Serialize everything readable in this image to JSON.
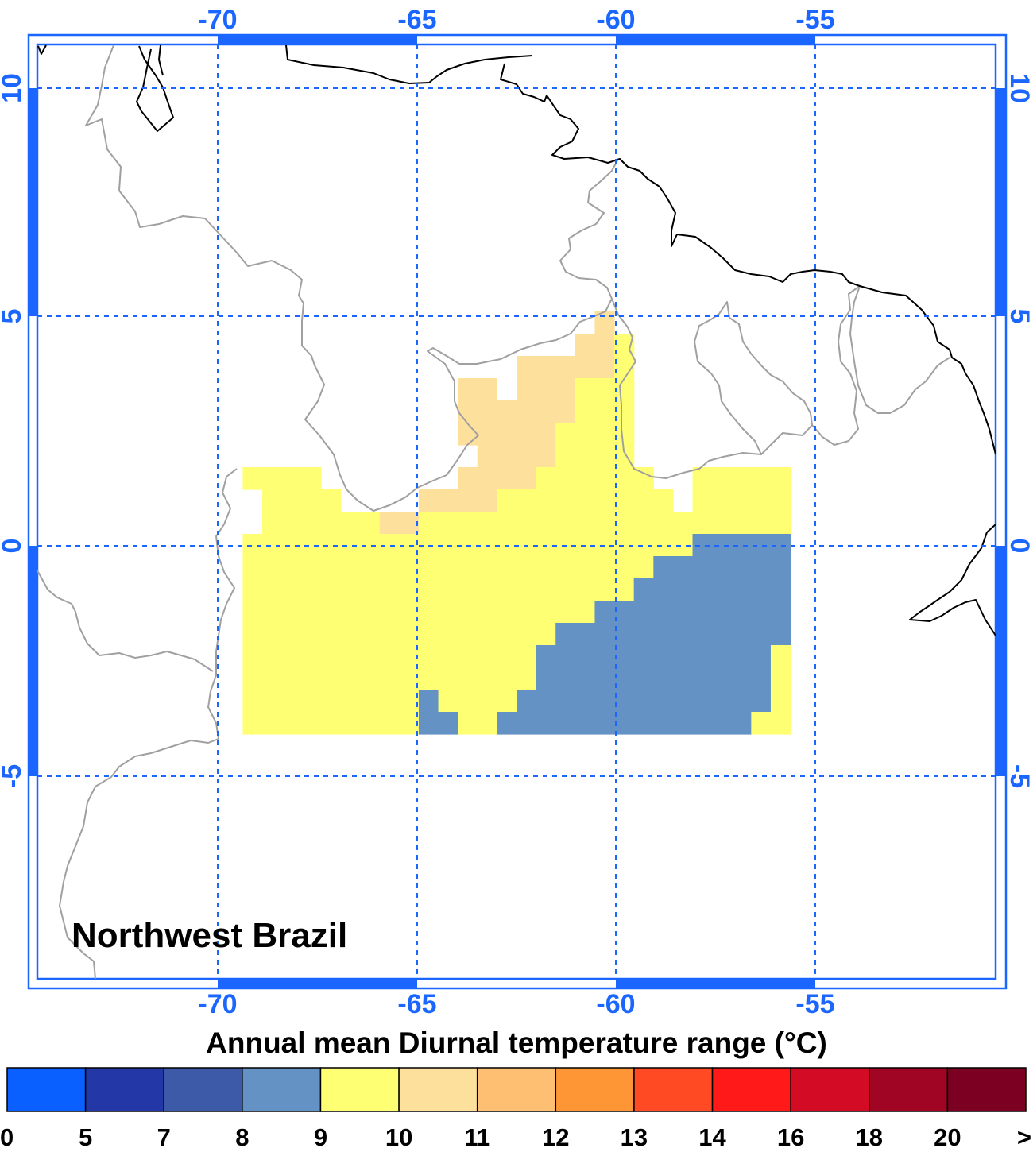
{
  "region_label": "Northwest Brazil",
  "title": "Annual mean Diurnal temperature range (°C)",
  "units": "°C",
  "accent_color": "#1a66ff",
  "axes": {
    "lon_ticks": [
      "-70",
      "-65",
      "-60",
      "-55"
    ],
    "lat_ticks": [
      "10",
      "5",
      "0",
      "-5"
    ]
  },
  "colorbar": {
    "labels": [
      "0",
      "5",
      "7",
      "8",
      "9",
      "10",
      "11",
      "12",
      "13",
      "14",
      "16",
      "18",
      "20",
      ">"
    ],
    "colors": [
      "#0a5fff",
      "#2437a6",
      "#3c5aa8",
      "#6592c4",
      "#ffff73",
      "#fde09c",
      "#ffbf73",
      "#ff9635",
      "#ff4a23",
      "#ff1919",
      "#d40b24",
      "#a00523",
      "#7b0021"
    ]
  },
  "chart_data": {
    "type": "heatmap",
    "title": "Annual mean Diurnal temperature range (°C)",
    "region": "Northwest Brazil",
    "xlim": [
      -74.75,
      -50.25
    ],
    "ylim": [
      -9.5,
      11.5
    ],
    "cell_size_deg": 0.5,
    "cells_by_row": [
      {
        "lat_range": [
          5,
          5.5
        ],
        "segments": [
          {
            "lon": [
              -60.5,
              -60
            ],
            "class": "10-11"
          }
        ]
      },
      {
        "lat_range": [
          4.5,
          5
        ],
        "segments": [
          {
            "lon": [
              -61,
              -60
            ],
            "class": "10-11"
          },
          {
            "lon": [
              -60,
              -59.5
            ],
            "class": "9-10"
          }
        ]
      },
      {
        "lat_range": [
          4,
          4.5
        ],
        "segments": [
          {
            "lon": [
              -62.5,
              -60
            ],
            "class": "10-11"
          },
          {
            "lon": [
              -60,
              -59.5
            ],
            "class": "9-10"
          }
        ]
      },
      {
        "lat_range": [
          3.5,
          4
        ],
        "segments": [
          {
            "lon": [
              -64,
              -63
            ],
            "class": "10-11"
          },
          {
            "lon": [
              -62.5,
              -61
            ],
            "class": "10-11"
          },
          {
            "lon": [
              -61,
              -59.5
            ],
            "class": "9-10"
          }
        ]
      },
      {
        "lat_range": [
          3,
          3.5
        ],
        "segments": [
          {
            "lon": [
              -64,
              -61
            ],
            "class": "10-11"
          },
          {
            "lon": [
              -61,
              -59.5
            ],
            "class": "9-10"
          }
        ]
      },
      {
        "lat_range": [
          2.5,
          3
        ],
        "segments": [
          {
            "lon": [
              -64,
              -61.5
            ],
            "class": "10-11"
          },
          {
            "lon": [
              -61.5,
              -59.5
            ],
            "class": "9-10"
          }
        ]
      },
      {
        "lat_range": [
          2,
          2.5
        ],
        "segments": [
          {
            "lon": [
              -63.5,
              -61.5
            ],
            "class": "10-11"
          },
          {
            "lon": [
              -61.5,
              -59.5
            ],
            "class": "9-10"
          }
        ]
      },
      {
        "lat_range": [
          1.5,
          2
        ],
        "segments": [
          {
            "lon": [
              -69.5,
              -67.5
            ],
            "class": "9-10"
          },
          {
            "lon": [
              -64,
              -62
            ],
            "class": "10-11"
          },
          {
            "lon": [
              -62,
              -59
            ],
            "class": "9-10"
          },
          {
            "lon": [
              -58,
              -55.5
            ],
            "class": "9-10"
          }
        ]
      },
      {
        "lat_range": [
          1,
          1.5
        ],
        "segments": [
          {
            "lon": [
              -69,
              -67
            ],
            "class": "9-10"
          },
          {
            "lon": [
              -65,
              -63
            ],
            "class": "10-11"
          },
          {
            "lon": [
              -63,
              -58.5
            ],
            "class": "9-10"
          },
          {
            "lon": [
              -58,
              -55.5
            ],
            "class": "9-10"
          }
        ]
      },
      {
        "lat_range": [
          0.5,
          1
        ],
        "segments": [
          {
            "lon": [
              -69,
              -66
            ],
            "class": "9-10"
          },
          {
            "lon": [
              -66,
              -65
            ],
            "class": "10-11"
          },
          {
            "lon": [
              -65,
              -55.5
            ],
            "class": "9-10"
          }
        ]
      },
      {
        "lat_range": [
          0,
          0.5
        ],
        "segments": [
          {
            "lon": [
              -69.5,
              -58
            ],
            "class": "9-10"
          },
          {
            "lon": [
              -58,
              -55.5
            ],
            "class": "8-9"
          }
        ]
      },
      {
        "lat_range": [
          -0.5,
          0
        ],
        "segments": [
          {
            "lon": [
              -69.5,
              -59
            ],
            "class": "9-10"
          },
          {
            "lon": [
              -59,
              -55.5
            ],
            "class": "8-9"
          }
        ]
      },
      {
        "lat_range": [
          -1,
          -0.5
        ],
        "segments": [
          {
            "lon": [
              -69.5,
              -59.5
            ],
            "class": "9-10"
          },
          {
            "lon": [
              -59.5,
              -55.5
            ],
            "class": "8-9"
          }
        ]
      },
      {
        "lat_range": [
          -1.5,
          -1
        ],
        "segments": [
          {
            "lon": [
              -69.5,
              -60.5
            ],
            "class": "9-10"
          },
          {
            "lon": [
              -60.5,
              -55.5
            ],
            "class": "8-9"
          }
        ]
      },
      {
        "lat_range": [
          -2,
          -1.5
        ],
        "segments": [
          {
            "lon": [
              -69.5,
              -61.5
            ],
            "class": "9-10"
          },
          {
            "lon": [
              -61.5,
              -55.5
            ],
            "class": "8-9"
          }
        ]
      },
      {
        "lat_range": [
          -2.5,
          -2
        ],
        "segments": [
          {
            "lon": [
              -69.5,
              -62
            ],
            "class": "9-10"
          },
          {
            "lon": [
              -62,
              -56
            ],
            "class": "8-9"
          },
          {
            "lon": [
              -56,
              -55.5
            ],
            "class": "9-10"
          }
        ]
      },
      {
        "lat_range": [
          -3,
          -2.5
        ],
        "segments": [
          {
            "lon": [
              -69.5,
              -62
            ],
            "class": "9-10"
          },
          {
            "lon": [
              -62,
              -56
            ],
            "class": "8-9"
          },
          {
            "lon": [
              -56,
              -55.5
            ],
            "class": "9-10"
          }
        ]
      },
      {
        "lat_range": [
          -3.5,
          -3
        ],
        "segments": [
          {
            "lon": [
              -69.5,
              -65
            ],
            "class": "9-10"
          },
          {
            "lon": [
              -65,
              -64.5
            ],
            "class": "8-9"
          },
          {
            "lon": [
              -64.5,
              -62.5
            ],
            "class": "9-10"
          },
          {
            "lon": [
              -62.5,
              -56
            ],
            "class": "8-9"
          },
          {
            "lon": [
              -56,
              -55.5
            ],
            "class": "9-10"
          }
        ]
      },
      {
        "lat_range": [
          -4,
          -3.5
        ],
        "segments": [
          {
            "lon": [
              -69.5,
              -65
            ],
            "class": "9-10"
          },
          {
            "lon": [
              -65,
              -64
            ],
            "class": "8-9"
          },
          {
            "lon": [
              -64,
              -63
            ],
            "class": "9-10"
          },
          {
            "lon": [
              -63,
              -56.5
            ],
            "class": "8-9"
          },
          {
            "lon": [
              -56.5,
              -55.5
            ],
            "class": "9-10"
          }
        ]
      }
    ]
  }
}
